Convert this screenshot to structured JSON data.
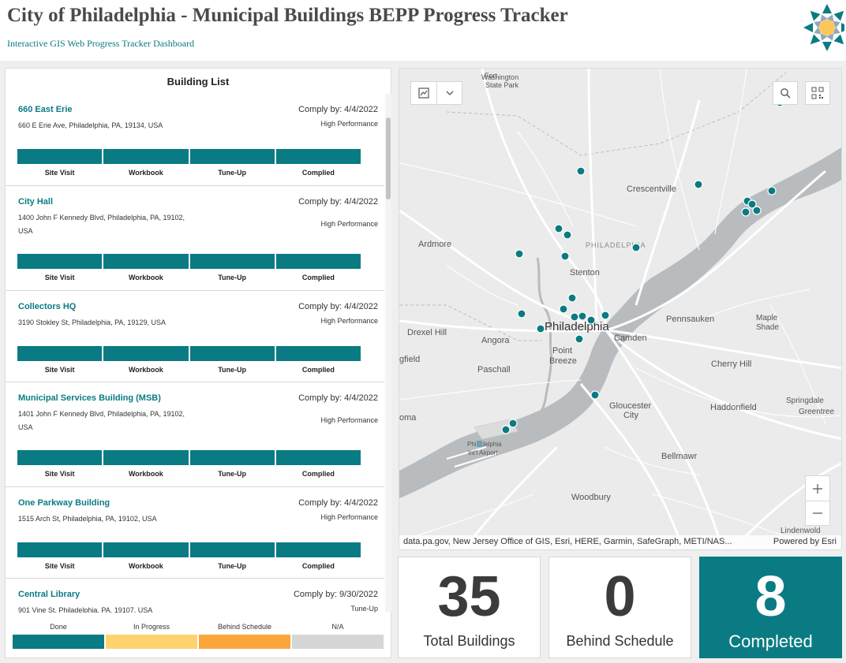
{
  "header": {
    "title": "City of Philadelphia - Municipal Buildings BEPP Progress Tracker",
    "subtitle": "Interactive GIS Web Progress Tracker Dashboard"
  },
  "building_list": {
    "title": "Building List",
    "steps": [
      "Site Visit",
      "Workbook",
      "Tune-Up",
      "Complied"
    ],
    "items": [
      {
        "name": "660 East Erie",
        "comply": "Comply by: 4/4/2022",
        "address": "660 E Erie Ave, Philadelphia, PA, 19134, USA",
        "status": "High Performance"
      },
      {
        "name": "City Hall",
        "comply": "Comply by: 4/4/2022",
        "address": "1400 John F Kennedy Blvd, Philadelphia, PA, 19102, USA",
        "status": "High Performance"
      },
      {
        "name": "Collectors HQ",
        "comply": "Comply by: 4/4/2022",
        "address": "3190 Stokley St, Philadelphia, PA, 19129, USA",
        "status": "High Performance"
      },
      {
        "name": "Municipal Services Building (MSB)",
        "comply": "Comply by: 4/4/2022",
        "address": "1401 John F Kennedy Blvd, Philadelphia, PA, 19102, USA",
        "status": "High Performance"
      },
      {
        "name": "One Parkway Building",
        "comply": "Comply by: 4/4/2022",
        "address": "1515 Arch St, Philadelphia, PA, 19102, USA",
        "status": "High Performance"
      },
      {
        "name": "Central Library",
        "comply": "Comply by: 9/30/2022",
        "address": "901 Vine St, Philadelphia, PA, 19107, USA",
        "status": "Tune-Up"
      }
    ]
  },
  "legend": {
    "items": [
      {
        "label": "Done",
        "color": "#0a7b83"
      },
      {
        "label": "In Progress",
        "color": "#fdd36f"
      },
      {
        "label": "Behind Schedule",
        "color": "#fba63a"
      },
      {
        "label": "N/A",
        "color": "#d6d6d6"
      }
    ]
  },
  "map": {
    "place_labels": [
      {
        "text": "Fort",
        "cls": "small"
      },
      {
        "text": "Washington",
        "cls": "small"
      },
      {
        "text": "State Park",
        "cls": "small"
      },
      {
        "text": "Crescentville",
        "cls": "mid"
      },
      {
        "text": "Ardmore",
        "cls": "mid"
      },
      {
        "text": "PHILADELPHIA",
        "cls": "caps"
      },
      {
        "text": "Stenton",
        "cls": "mid"
      },
      {
        "text": "Philadelphia",
        "cls": "big"
      },
      {
        "text": "Drexel Hill",
        "cls": "mid"
      },
      {
        "text": "Angora",
        "cls": "mid"
      },
      {
        "text": "Point",
        "cls": "mid"
      },
      {
        "text": "Breeze",
        "cls": "mid"
      },
      {
        "text": "Camden",
        "cls": "mid"
      },
      {
        "text": "Pennsauken",
        "cls": "mid"
      },
      {
        "text": "Maple",
        "cls": "mid"
      },
      {
        "text": "Shade",
        "cls": "mid"
      },
      {
        "text": "gfield",
        "cls": "mid"
      },
      {
        "text": "Paschall",
        "cls": "mid"
      },
      {
        "text": "Cherry Hill",
        "cls": "mid"
      },
      {
        "text": "Gloucester",
        "cls": "mid"
      },
      {
        "text": "City",
        "cls": "mid"
      },
      {
        "text": "Haddonfield",
        "cls": "mid"
      },
      {
        "text": "Springdale",
        "cls": "mid"
      },
      {
        "text": "Greentree",
        "cls": "mid"
      },
      {
        "text": "oma",
        "cls": "mid"
      },
      {
        "text": "Philadelphia",
        "cls": "small"
      },
      {
        "text": "Int'l Airport",
        "cls": "small"
      },
      {
        "text": "Bellmawr",
        "cls": "mid"
      },
      {
        "text": "Woodbury",
        "cls": "mid"
      },
      {
        "text": "Lindenwold",
        "cls": "mid"
      }
    ],
    "attribution": "data.pa.gov, New Jersey Office of GIS, Esri, HERE, Garmin, SafeGraph, METI/NAS...",
    "powered_by": "Powered by Esri",
    "marker_color": "#0a7b83"
  },
  "stats": [
    {
      "value": "35",
      "label": "Total Buildings"
    },
    {
      "value": "0",
      "label": "Behind Schedule"
    },
    {
      "value": "8",
      "label": "Completed"
    }
  ]
}
